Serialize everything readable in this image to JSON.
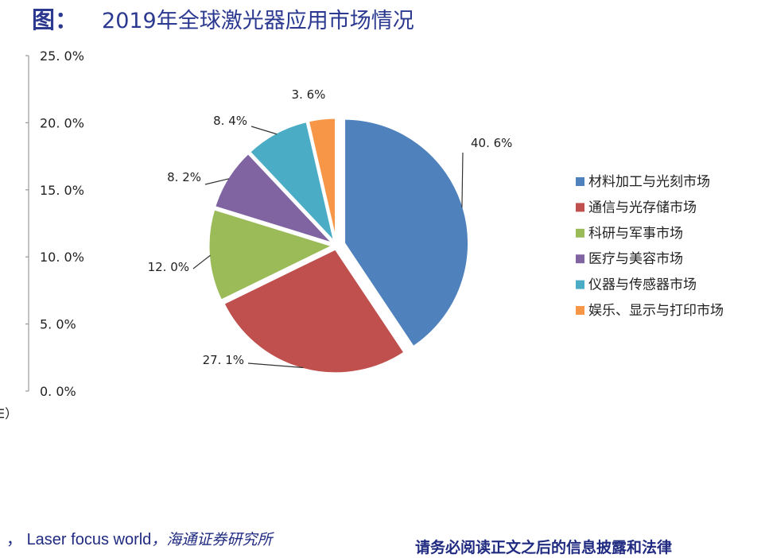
{
  "title": {
    "prefix": "图：",
    "text": "2019年全球激光器应用市场情况"
  },
  "left_axis": {
    "ticks": [
      "25.0%",
      "20.0%",
      "15.0%",
      "10.0%",
      "5.0%",
      "0.0%"
    ],
    "fragment": "E）"
  },
  "chart_data": {
    "type": "pie",
    "title": "",
    "slices": [
      {
        "label": "材料加工与光刻市场",
        "value": 40.6,
        "value_label": "40.6%",
        "color": "#4f81bd"
      },
      {
        "label": "通信与光存储市场",
        "value": 27.1,
        "value_label": "27.1%",
        "color": "#c0504d"
      },
      {
        "label": "科研与军事市场",
        "value": 12.0,
        "value_label": "12.0%",
        "color": "#9bbb59"
      },
      {
        "label": "医疗与美容市场",
        "value": 8.2,
        "value_label": "8.2%",
        "color": "#8064a2"
      },
      {
        "label": "仪器与传感器市场",
        "value": 8.4,
        "value_label": "8.4%",
        "color": "#4bacc6"
      },
      {
        "label": "娱乐、显示与打印市场",
        "value": 3.6,
        "value_label": "3.6%",
        "color": "#f79646"
      }
    ],
    "legend_position": "right"
  },
  "footer": {
    "source_prefix": "，",
    "source_1": "Laser focus world",
    "source_sep": "，",
    "source_2": "海通证券研究所",
    "disclaimer": "请务必阅读正文之后的信息披露和法律"
  }
}
